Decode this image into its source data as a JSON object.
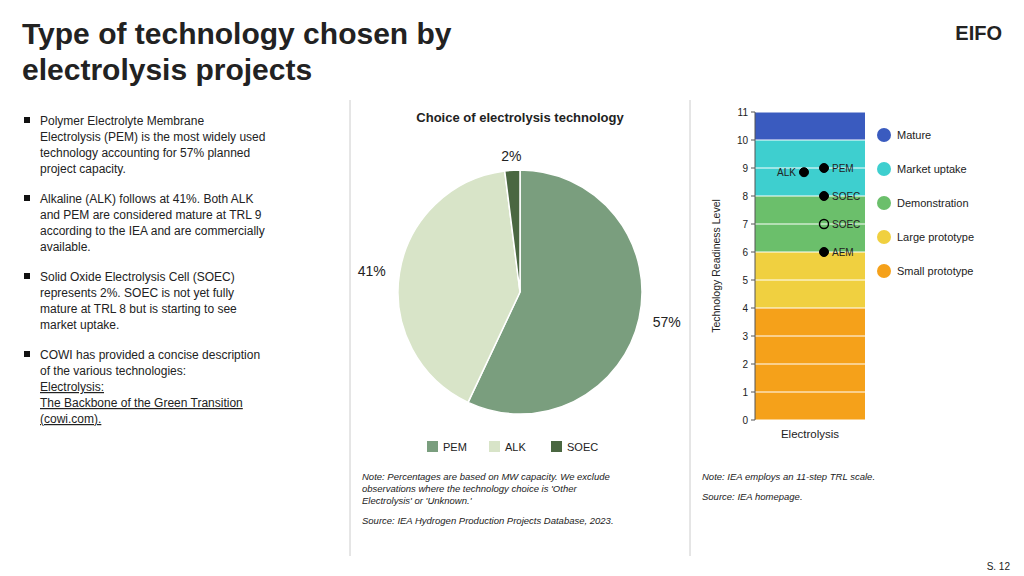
{
  "title": "Type of technology chosen by\nelectrolysis projects",
  "logo": "EIFO",
  "page_number": "S. 12",
  "annotations": [
    {
      "text": "Polymer Electrolyte Membrane\nElectrolysis (PEM) is the most widely used\ntechnology accounting for 57% planned\nproject capacity."
    },
    {
      "text": "Alkaline (ALK) follows at 41%. Both ALK\nand PEM are considered mature at TRL 9\naccording to the IEA and are commercially\navailable."
    },
    {
      "text": "Solid Oxide Electrolysis Cell (SOEC)\nrepresents 2%. SOEC is not yet fully\nmature at TRL 8 but is starting to see\nmarket uptake."
    },
    {
      "text": "COWI has provided a concise description\nof the various technologies: "
    },
    {
      "text": "Electrolysis:\nThe Backbone of the Green Transition\n(cowi.com).",
      "color": "#22aa55"
    }
  ],
  "chart_data": [
    {
      "type": "pie",
      "title": "Choice of electrolysis technology",
      "categories": [
        "PEM",
        "ALK",
        "SOEC"
      ],
      "values": [
        57,
        41,
        2
      ],
      "value_labels": [
        "57%",
        "41%",
        "2%"
      ],
      "colors": [
        "#7a9e7e",
        "#d8e4c8",
        "#4a6741"
      ],
      "data_labels": true,
      "legend": "bottom",
      "annotations": [
        "Note: Percentages are based on MW capacity. We exclude\nobservations where the technology choice is 'Other\nElectrolysis' or 'Unknown.'",
        "Source: IEA Hydrogen Production Projects Database, 2023."
      ]
    },
    {
      "type": "scatter",
      "categories": [
        "Electrolysis"
      ],
      "ylabel": "Technology Readiness Level",
      "ylim": [
        0,
        11
      ],
      "yticks": [
        0,
        1,
        2,
        3,
        4,
        5,
        6,
        7,
        8,
        9,
        10,
        11
      ],
      "grid": true,
      "legend": "right",
      "series": [
        {
          "name": "PEM",
          "values": [
            9.0
          ],
          "marker": "filled-circle"
        },
        {
          "name": "ALK",
          "values": [
            8.85
          ],
          "marker": "filled-circle"
        },
        {
          "name": "SOEC",
          "values": [
            8.0
          ],
          "marker": "filled-circle"
        },
        {
          "name": "SOEC",
          "values": [
            7.0
          ],
          "marker": "open-circle"
        },
        {
          "name": "AEM",
          "values": [
            6.0
          ],
          "marker": "filled-circle"
        }
      ],
      "bands": [
        {
          "name": "Small prototype",
          "color": "#f5a11a",
          "from": 0,
          "to": 4
        },
        {
          "name": "Large prototype",
          "color": "#f0d040",
          "from": 4,
          "to": 6
        },
        {
          "name": "Demonstration",
          "color": "#6bbf6b",
          "from": 6,
          "to": 8
        },
        {
          "name": "Market uptake",
          "color": "#3ecfcf",
          "from": 8,
          "to": 10
        },
        {
          "name": "Mature",
          "color": "#3a5bbf",
          "from": 10,
          "to": 11
        }
      ],
      "annotations": [
        "Note: IEA employs an 11-step TRL scale.",
        "Source: IEA homepage."
      ]
    }
  ]
}
